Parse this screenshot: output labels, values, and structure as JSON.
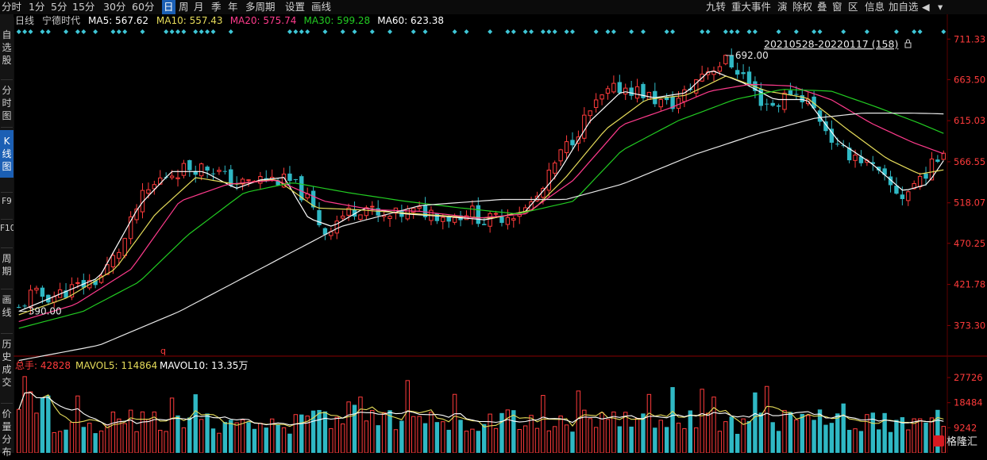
{
  "toolbar": {
    "tabs": [
      {
        "label": "分时",
        "active": false
      },
      {
        "label": "1分",
        "active": false
      },
      {
        "label": "5分",
        "active": false
      },
      {
        "label": "15分",
        "active": false
      },
      {
        "label": "30分",
        "active": false
      },
      {
        "label": "60分",
        "active": false
      },
      {
        "label": "日",
        "active": true
      },
      {
        "label": "周",
        "active": false
      },
      {
        "label": "月",
        "active": false
      },
      {
        "label": "季",
        "active": false
      },
      {
        "label": "年",
        "active": false
      },
      {
        "label": "多周期",
        "active": false
      },
      {
        "label": "设置",
        "active": false
      },
      {
        "label": "画线",
        "active": false
      }
    ],
    "right_tools": [
      "九转",
      "重大事件",
      "演",
      "除权",
      "叠",
      "窗",
      "区",
      "信息",
      "加自选"
    ],
    "right_icons": [
      "sound-icon",
      "chevron-down-icon"
    ]
  },
  "sidebar": {
    "items": [
      {
        "label": "自选股",
        "active": false
      },
      {
        "label": "分时图",
        "active": false
      },
      {
        "label": "K线图",
        "active": true
      },
      {
        "label": "F9",
        "active": false
      },
      {
        "label": "F10",
        "active": false
      },
      {
        "label": "周期",
        "active": false
      },
      {
        "label": "画线",
        "active": false
      },
      {
        "label": "历史成交",
        "active": false
      },
      {
        "label": "价量分布",
        "active": false
      }
    ]
  },
  "legend": {
    "period": "日线",
    "stock_name": "宁德时代",
    "items": [
      {
        "label": "MA5: 567.62",
        "color": "#ffffff"
      },
      {
        "label": "MA10: 557.43",
        "color": "#e6dc5a"
      },
      {
        "label": "MA20: 575.74",
        "color": "#ff3b8c"
      },
      {
        "label": "MA30: 599.28",
        "color": "#22cc22"
      },
      {
        "label": "MA60: 623.38",
        "color": "#ffffff"
      }
    ]
  },
  "range_label": "20210528-20220117 (158)",
  "icons": {
    "lock": "lock-icon"
  },
  "annotations": {
    "high": "692.00",
    "low": "390.00",
    "marker": "q"
  },
  "volume_legend": {
    "items": [
      {
        "label": "总手: 42828",
        "color": "#ff3b3b"
      },
      {
        "label": "MAVOL5: 114864",
        "color": "#e6dc5a"
      },
      {
        "label": "MAVOL10: 13.35万",
        "color": "#ffffff"
      }
    ]
  },
  "logo": {
    "text": "格隆汇"
  },
  "colors": {
    "up": "#ff3b3b",
    "down": "#2fb8c4",
    "ma5": "#ffffff",
    "ma10": "#e6dc5a",
    "ma20": "#ff3b8c",
    "ma30": "#22cc22",
    "ma60": "#e8e8e8"
  },
  "chart_data": {
    "type": "candlestick",
    "price_ticks": [
      711.33,
      663.5,
      615.03,
      566.55,
      518.07,
      470.25,
      421.78,
      373.3
    ],
    "price_range": [
      340,
      720
    ],
    "volume_ticks": [
      27726,
      18484,
      9242
    ],
    "volume_range": [
      0,
      29500
    ],
    "n_bars": 158,
    "high_value": 692.0,
    "low_value": 390.0,
    "price_keypoints": [
      [
        0,
        392
      ],
      [
        3,
        410
      ],
      [
        8,
        407
      ],
      [
        14,
        418
      ],
      [
        20,
        428
      ],
      [
        26,
        470
      ],
      [
        30,
        520
      ],
      [
        36,
        550
      ],
      [
        42,
        560
      ],
      [
        48,
        560
      ],
      [
        52,
        545
      ],
      [
        56,
        540
      ],
      [
        60,
        546
      ],
      [
        64,
        545
      ],
      [
        68,
        542
      ],
      [
        72,
        520
      ],
      [
        76,
        483
      ],
      [
        80,
        502
      ],
      [
        86,
        515
      ],
      [
        90,
        498
      ],
      [
        96,
        506
      ],
      [
        102,
        508
      ],
      [
        108,
        500
      ],
      [
        112,
        510
      ],
      [
        116,
        495
      ],
      [
        120,
        502
      ],
      [
        126,
        510
      ],
      [
        130,
        530
      ],
      [
        134,
        570
      ],
      [
        138,
        596
      ],
      [
        142,
        625
      ],
      [
        146,
        646
      ],
      [
        150,
        655
      ],
      [
        154,
        650
      ],
      [
        158,
        640
      ],
      [
        162,
        632
      ],
      [
        166,
        648
      ],
      [
        170,
        672
      ],
      [
        176,
        686
      ],
      [
        180,
        670
      ],
      [
        184,
        640
      ],
      [
        188,
        632
      ],
      [
        192,
        650
      ],
      [
        196,
        640
      ],
      [
        200,
        612
      ],
      [
        204,
        578
      ],
      [
        208,
        575
      ],
      [
        212,
        560
      ],
      [
        216,
        540
      ],
      [
        220,
        525
      ],
      [
        224,
        548
      ],
      [
        228,
        565
      ],
      [
        230,
        585
      ]
    ],
    "ma_keypoints": {
      "MA5": [
        [
          0,
          390
        ],
        [
          10,
          410
        ],
        [
          20,
          430
        ],
        [
          30,
          515
        ],
        [
          38,
          555
        ],
        [
          46,
          555
        ],
        [
          54,
          535
        ],
        [
          60,
          545
        ],
        [
          66,
          548
        ],
        [
          72,
          500
        ],
        [
          78,
          490
        ],
        [
          86,
          512
        ],
        [
          96,
          505
        ],
        [
          106,
          502
        ],
        [
          116,
          498
        ],
        [
          126,
          508
        ],
        [
          134,
          552
        ],
        [
          142,
          614
        ],
        [
          150,
          650
        ],
        [
          158,
          642
        ],
        [
          166,
          648
        ],
        [
          172,
          675
        ],
        [
          180,
          660
        ],
        [
          188,
          640
        ],
        [
          196,
          640
        ],
        [
          204,
          590
        ],
        [
          212,
          565
        ],
        [
          220,
          532
        ],
        [
          226,
          540
        ],
        [
          230,
          568
        ]
      ],
      "MA10": [
        [
          0,
          386
        ],
        [
          12,
          406
        ],
        [
          24,
          440
        ],
        [
          34,
          505
        ],
        [
          44,
          548
        ],
        [
          54,
          540
        ],
        [
          64,
          546
        ],
        [
          74,
          512
        ],
        [
          84,
          510
        ],
        [
          96,
          506
        ],
        [
          108,
          502
        ],
        [
          118,
          500
        ],
        [
          128,
          510
        ],
        [
          136,
          548
        ],
        [
          146,
          605
        ],
        [
          156,
          640
        ],
        [
          166,
          645
        ],
        [
          176,
          668
        ],
        [
          186,
          650
        ],
        [
          196,
          642
        ],
        [
          206,
          605
        ],
        [
          216,
          570
        ],
        [
          224,
          552
        ],
        [
          230,
          557
        ]
      ],
      "MA20": [
        [
          0,
          378
        ],
        [
          14,
          398
        ],
        [
          28,
          440
        ],
        [
          40,
          520
        ],
        [
          52,
          540
        ],
        [
          64,
          545
        ],
        [
          76,
          520
        ],
        [
          88,
          510
        ],
        [
          100,
          508
        ],
        [
          114,
          500
        ],
        [
          126,
          505
        ],
        [
          138,
          545
        ],
        [
          150,
          610
        ],
        [
          162,
          630
        ],
        [
          172,
          650
        ],
        [
          182,
          658
        ],
        [
          192,
          656
        ],
        [
          202,
          640
        ],
        [
          212,
          612
        ],
        [
          222,
          590
        ],
        [
          230,
          576
        ]
      ],
      "MA30": [
        [
          0,
          370
        ],
        [
          16,
          390
        ],
        [
          30,
          425
        ],
        [
          42,
          480
        ],
        [
          56,
          530
        ],
        [
          68,
          542
        ],
        [
          82,
          530
        ],
        [
          96,
          520
        ],
        [
          110,
          512
        ],
        [
          124,
          505
        ],
        [
          138,
          520
        ],
        [
          150,
          580
        ],
        [
          164,
          615
        ],
        [
          178,
          640
        ],
        [
          190,
          652
        ],
        [
          202,
          650
        ],
        [
          214,
          630
        ],
        [
          224,
          612
        ],
        [
          230,
          600
        ]
      ],
      "MA60": [
        [
          0,
          332
        ],
        [
          20,
          350
        ],
        [
          40,
          390
        ],
        [
          60,
          440
        ],
        [
          80,
          490
        ],
        [
          100,
          515
        ],
        [
          120,
          522
        ],
        [
          136,
          522
        ],
        [
          150,
          540
        ],
        [
          168,
          575
        ],
        [
          184,
          600
        ],
        [
          198,
          618
        ],
        [
          210,
          624
        ],
        [
          222,
          624
        ],
        [
          230,
          623
        ]
      ]
    }
  }
}
